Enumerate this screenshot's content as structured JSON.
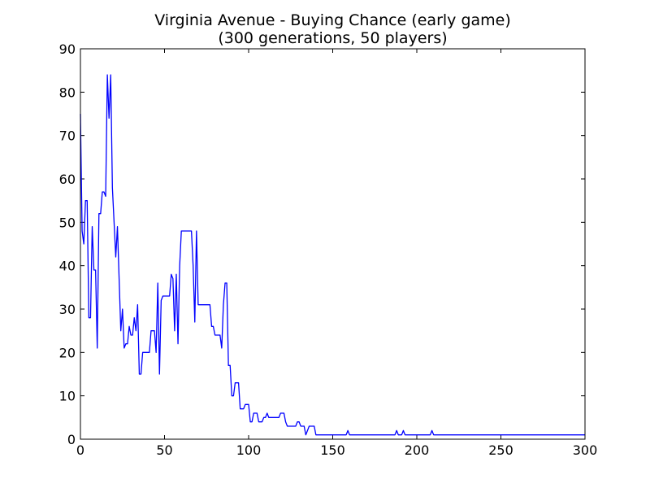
{
  "chart_data": {
    "type": "line",
    "title_line1": "Virginia Avenue - Buying Chance (early game)",
    "title_line2": "(300 generations, 50 players)",
    "xlabel": "",
    "ylabel": "",
    "xlim": [
      0,
      300
    ],
    "ylim": [
      0,
      90
    ],
    "xticks": [
      0,
      50,
      100,
      150,
      200,
      250,
      300
    ],
    "yticks": [
      0,
      10,
      20,
      30,
      40,
      50,
      60,
      70,
      80,
      90
    ],
    "grid": false,
    "legend": "none",
    "line_color": "#0000ff",
    "series": [
      {
        "x": [
          0,
          1,
          2,
          3,
          4,
          5,
          6,
          7,
          8,
          9,
          10,
          11,
          12,
          13,
          14,
          15,
          16,
          17,
          18,
          19,
          20,
          21,
          22,
          23,
          24,
          25,
          26,
          27,
          28,
          29,
          30,
          31,
          32,
          33,
          34,
          35,
          36,
          37,
          38,
          39,
          40,
          41,
          42,
          43,
          44,
          45,
          46,
          47,
          48,
          49,
          50,
          51,
          52,
          53,
          54,
          55,
          56,
          57,
          58,
          59,
          60,
          61,
          62,
          63,
          64,
          65,
          66,
          67,
          68,
          69,
          70,
          71,
          72,
          73,
          74,
          75,
          76,
          77,
          78,
          79,
          80,
          81,
          82,
          83,
          84,
          85,
          86,
          87,
          88,
          89,
          90,
          91,
          92,
          93,
          94,
          95,
          96,
          97,
          98,
          99,
          100,
          101,
          102,
          103,
          104,
          105,
          106,
          107,
          108,
          109,
          110,
          111,
          112,
          113,
          114,
          115,
          116,
          117,
          118,
          119,
          120,
          121,
          122,
          123,
          124,
          125,
          126,
          127,
          128,
          129,
          130,
          131,
          132,
          133,
          134,
          135,
          136,
          137,
          138,
          139,
          140,
          158,
          159,
          160,
          187,
          188,
          189,
          191,
          192,
          193,
          208,
          209,
          210,
          300
        ],
        "y": [
          75,
          48,
          45,
          55,
          55,
          28,
          28,
          49,
          39,
          39,
          21,
          52,
          52,
          57,
          57,
          56,
          84,
          74,
          84,
          58,
          50,
          42,
          49,
          37,
          25,
          30,
          21,
          22,
          22,
          26,
          24,
          24,
          28,
          25,
          31,
          15,
          15,
          20,
          20,
          20,
          20,
          20,
          25,
          25,
          25,
          20,
          36,
          15,
          32,
          33,
          33,
          33,
          33,
          33,
          38,
          37,
          25,
          38,
          22,
          40,
          48,
          48,
          48,
          48,
          48,
          48,
          48,
          40,
          27,
          48,
          31,
          31,
          31,
          31,
          31,
          31,
          31,
          31,
          26,
          26,
          24,
          24,
          24,
          24,
          21,
          31,
          36,
          36,
          17,
          17,
          10,
          10,
          13,
          13,
          13,
          7,
          7,
          7,
          8,
          8,
          8,
          4,
          4,
          6,
          6,
          6,
          4,
          4,
          4,
          5,
          5,
          6,
          5,
          5,
          5,
          5,
          5,
          5,
          5,
          6,
          6,
          6,
          4,
          3,
          3,
          3,
          3,
          3,
          3,
          4,
          4,
          3,
          3,
          3,
          1,
          2,
          3,
          3,
          3,
          3,
          1,
          1,
          2,
          1,
          1,
          2,
          1,
          1,
          2,
          1,
          1,
          2,
          1,
          1
        ]
      }
    ]
  }
}
